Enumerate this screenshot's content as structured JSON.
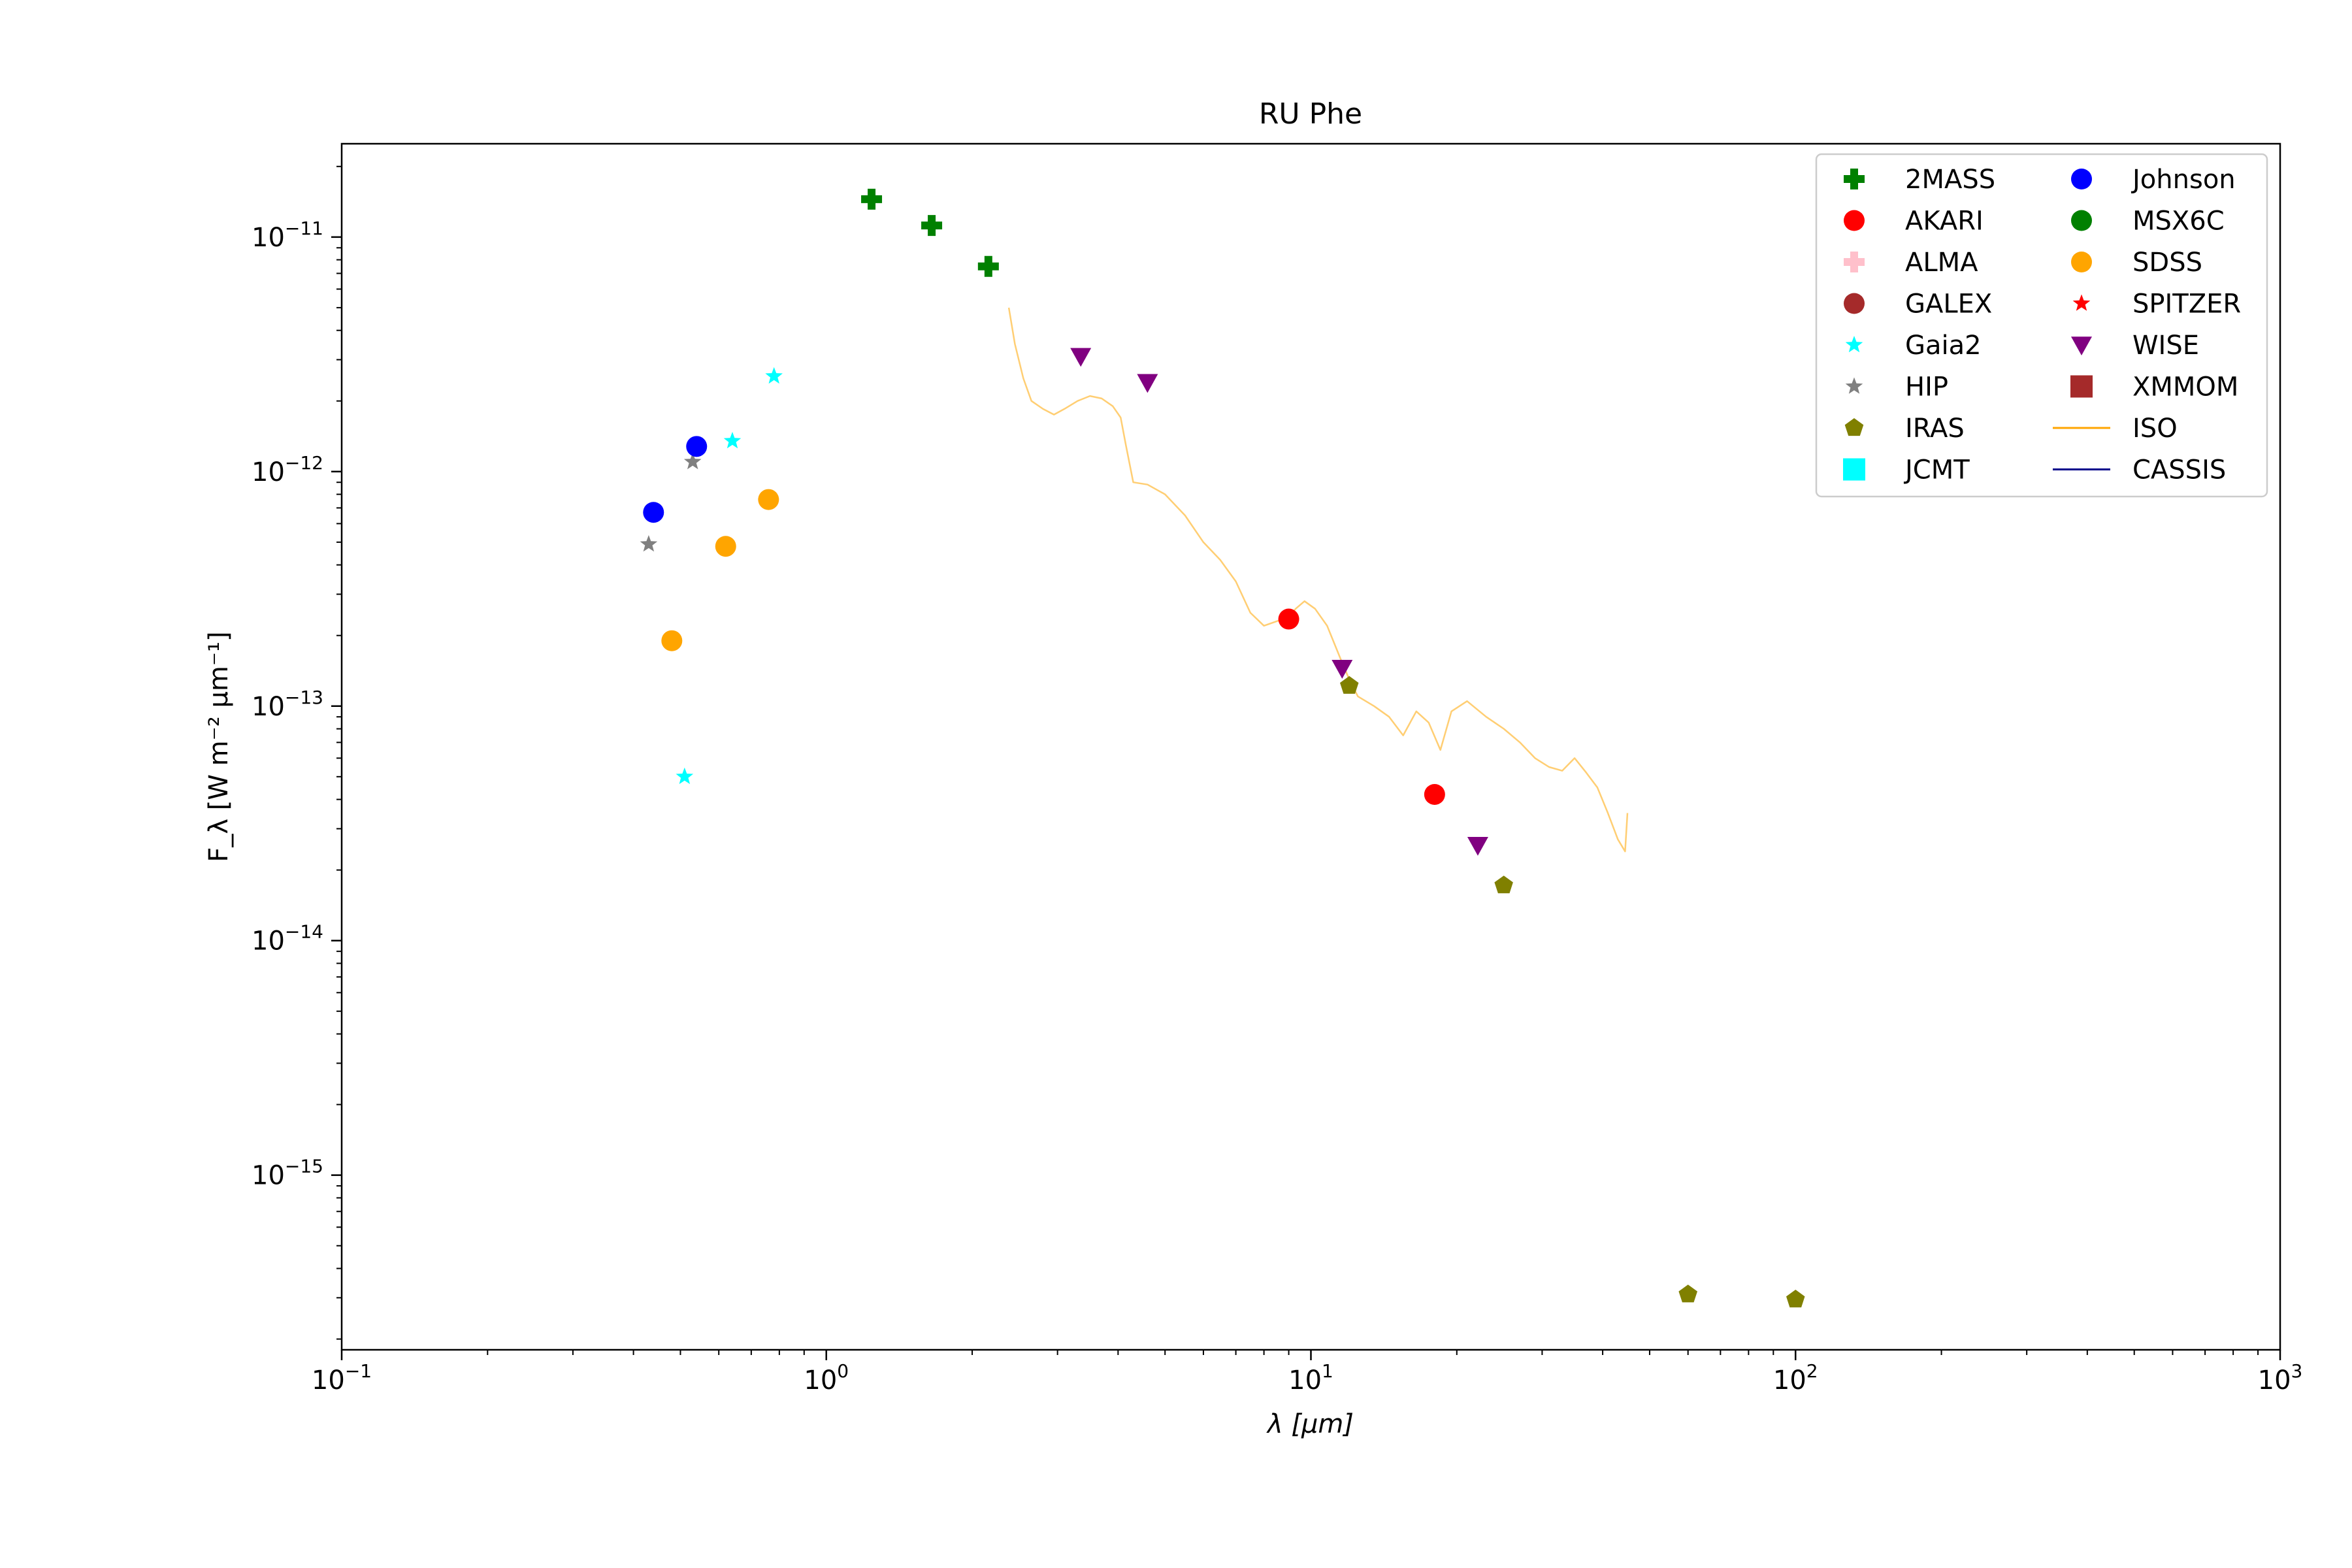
{
  "chart_data": {
    "type": "scatter",
    "title": "RU Phe",
    "xlabel": "λ [μm]",
    "ylabel": "F_λ [W m⁻² μm⁻¹]",
    "xscale": "log",
    "yscale": "log",
    "xlim": [
      0.1,
      1000
    ],
    "ylim": [
      1.8e-16,
      2.5e-11
    ],
    "x_ticks": [
      {
        "value": 0.1,
        "base": "10",
        "exp": "−1"
      },
      {
        "value": 1,
        "base": "10",
        "exp": "0"
      },
      {
        "value": 10,
        "base": "10",
        "exp": "1"
      },
      {
        "value": 100,
        "base": "10",
        "exp": "2"
      },
      {
        "value": 1000,
        "base": "10",
        "exp": "3"
      }
    ],
    "y_ticks": [
      {
        "value": 1e-15,
        "base": "10",
        "exp": "−15"
      },
      {
        "value": 1e-14,
        "base": "10",
        "exp": "−14"
      },
      {
        "value": 1e-13,
        "base": "10",
        "exp": "−13"
      },
      {
        "value": 1e-12,
        "base": "10",
        "exp": "−12"
      },
      {
        "value": 1e-11,
        "base": "10",
        "exp": "−11"
      }
    ],
    "grid": false,
    "legend_position": "top-right",
    "legend_columns": 2,
    "series": [
      {
        "name": "2MASS",
        "marker": "plus",
        "color": "#008000",
        "points": [
          [
            1.24,
            1.45e-11
          ],
          [
            1.65,
            1.12e-11
          ],
          [
            2.16,
            7.5e-12
          ]
        ]
      },
      {
        "name": "AKARI",
        "marker": "circle",
        "color": "#ff0000",
        "points": [
          [
            9.0,
            2.35e-13
          ],
          [
            18.0,
            4.2e-14
          ]
        ]
      },
      {
        "name": "ALMA",
        "marker": "plus",
        "color": "#ffc0cb",
        "points": []
      },
      {
        "name": "GALEX",
        "marker": "circle",
        "color": "#a52a2a",
        "points": []
      },
      {
        "name": "Gaia2",
        "marker": "star",
        "color": "#00ffff",
        "points": [
          [
            0.51,
            5e-14
          ],
          [
            0.64,
            1.35e-12
          ],
          [
            0.78,
            2.55e-12
          ]
        ]
      },
      {
        "name": "HIP",
        "marker": "star",
        "color": "#808080",
        "points": [
          [
            0.43,
            4.9e-13
          ],
          [
            0.53,
            1.1e-12
          ]
        ]
      },
      {
        "name": "IRAS",
        "marker": "pentagon",
        "color": "#808000",
        "points": [
          [
            12,
            1.22e-13
          ],
          [
            25,
            1.72e-14
          ],
          [
            60,
            3.1e-16
          ],
          [
            100,
            2.95e-16
          ]
        ]
      },
      {
        "name": "JCMT",
        "marker": "square",
        "color": "#00ffff",
        "points": []
      },
      {
        "name": "Johnson",
        "marker": "circle",
        "color": "#0000ff",
        "points": [
          [
            0.44,
            6.7e-13
          ],
          [
            0.54,
            1.28e-12
          ]
        ]
      },
      {
        "name": "MSX6C",
        "marker": "circle",
        "color": "#008000",
        "points": []
      },
      {
        "name": "SDSS",
        "marker": "circle",
        "color": "#ffa500",
        "points": [
          [
            0.48,
            1.9e-13
          ],
          [
            0.62,
            4.8e-13
          ],
          [
            0.76,
            7.6e-13
          ]
        ]
      },
      {
        "name": "SPITZER",
        "marker": "star",
        "color": "#ff0000",
        "points": []
      },
      {
        "name": "WISE",
        "marker": "triangle-down",
        "color": "#800080",
        "points": [
          [
            3.35,
            3.1e-12
          ],
          [
            4.6,
            2.4e-12
          ],
          [
            11.6,
            1.45e-13
          ],
          [
            22.1,
            2.55e-14
          ]
        ]
      },
      {
        "name": "XMMOM",
        "marker": "square",
        "color": "#a52a2a",
        "points": []
      },
      {
        "name": "ISO",
        "marker": "line",
        "color": "#ffa500",
        "points": [
          [
            2.38,
            5e-12
          ],
          [
            2.45,
            3.5e-12
          ],
          [
            2.55,
            2.5e-12
          ],
          [
            2.65,
            2e-12
          ],
          [
            2.8,
            1.85e-12
          ],
          [
            2.95,
            1.75e-12
          ],
          [
            3.1,
            1.85e-12
          ],
          [
            3.3,
            2e-12
          ],
          [
            3.5,
            2.1e-12
          ],
          [
            3.7,
            2.05e-12
          ],
          [
            3.9,
            1.9e-12
          ],
          [
            4.05,
            1.7e-12
          ],
          [
            4.15,
            1.3e-12
          ],
          [
            4.3,
            9e-13
          ],
          [
            4.6,
            8.8e-13
          ],
          [
            5.0,
            8e-13
          ],
          [
            5.5,
            6.5e-13
          ],
          [
            6.0,
            5e-13
          ],
          [
            6.5,
            4.2e-13
          ],
          [
            7.0,
            3.4e-13
          ],
          [
            7.5,
            2.5e-13
          ],
          [
            8.0,
            2.2e-13
          ],
          [
            8.5,
            2.3e-13
          ],
          [
            9.0,
            2.4e-13
          ],
          [
            9.3,
            2.6e-13
          ],
          [
            9.7,
            2.8e-13
          ],
          [
            10.2,
            2.6e-13
          ],
          [
            10.8,
            2.2e-13
          ],
          [
            11.5,
            1.6e-13
          ],
          [
            12.0,
            1.3e-13
          ],
          [
            12.5,
            1.1e-13
          ],
          [
            13.5,
            1e-13
          ],
          [
            14.5,
            9e-14
          ],
          [
            15.5,
            7.5e-14
          ],
          [
            16.5,
            9.5e-14
          ],
          [
            17.5,
            8.5e-14
          ],
          [
            18.5,
            6.5e-14
          ],
          [
            19.5,
            9.5e-14
          ],
          [
            21.0,
            1.05e-13
          ],
          [
            23.0,
            9e-14
          ],
          [
            25.0,
            8e-14
          ],
          [
            27.0,
            7e-14
          ],
          [
            29.0,
            6e-14
          ],
          [
            31.0,
            5.5e-14
          ],
          [
            33.0,
            5.3e-14
          ],
          [
            35.0,
            6e-14
          ],
          [
            37.0,
            5.2e-14
          ],
          [
            39.0,
            4.5e-14
          ],
          [
            41.0,
            3.5e-14
          ],
          [
            43.0,
            2.7e-14
          ],
          [
            44.5,
            2.4e-14
          ],
          [
            45.0,
            3.5e-14
          ]
        ]
      },
      {
        "name": "CASSIS",
        "marker": "line",
        "color": "#00008b",
        "points": []
      }
    ]
  }
}
